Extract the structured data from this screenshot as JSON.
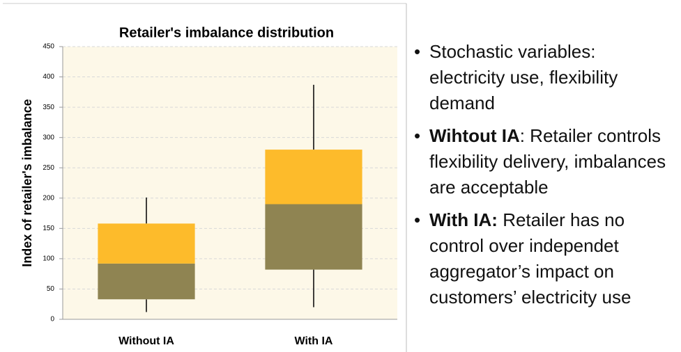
{
  "chart_data": {
    "type": "box",
    "title": "Retailer's imbalance distribution",
    "y_label": "Index of retailer's imbalance",
    "categories": [
      "Without IA",
      "With IA"
    ],
    "min": [
      12,
      20
    ],
    "q1": [
      33,
      82
    ],
    "median": [
      92,
      190
    ],
    "q3": [
      158,
      280
    ],
    "max": [
      201,
      387
    ],
    "lower_color": "#8f8452",
    "upper_color": "#fdbb2b",
    "ylim": [
      0,
      450
    ],
    "yticks": [
      0,
      50,
      100,
      150,
      200,
      250,
      300,
      350,
      400,
      450
    ],
    "grid": true
  },
  "bullets": [
    {
      "text": "Stochastic variables: electricity use, flexibility demand"
    },
    {
      "bold": "Wihtout IA",
      "text": ": Retailer controls flexibility delivery, imbalances are acceptable"
    },
    {
      "bold": "With IA:",
      "text": " Retailer has no control over independet aggregator’s impact on customers’ electricity use"
    }
  ]
}
